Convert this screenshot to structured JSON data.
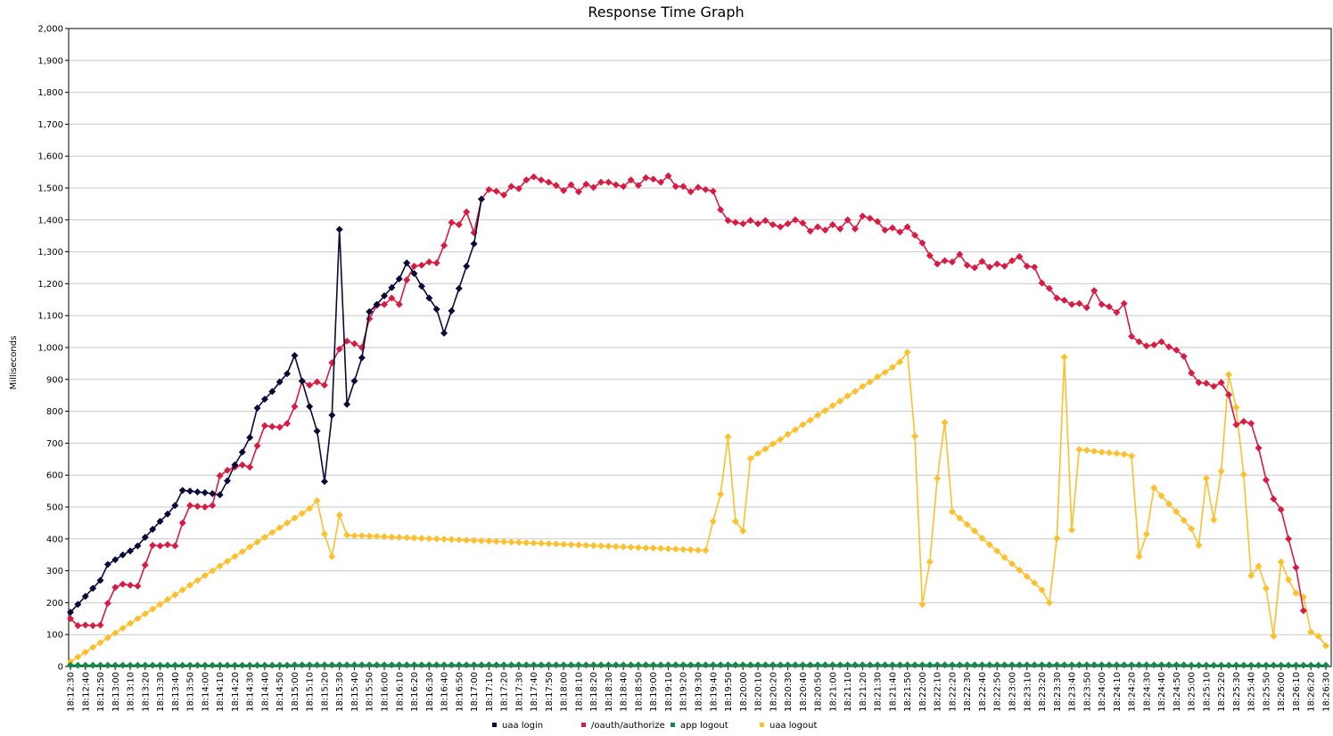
{
  "chart_data": {
    "type": "line",
    "title": "Response Time Graph",
    "ylabel": "Milliseconds",
    "xlabel": "",
    "ylim": [
      0,
      2000
    ],
    "yticks": [
      0,
      100,
      200,
      300,
      400,
      500,
      600,
      700,
      800,
      900,
      1000,
      1100,
      1200,
      1300,
      1400,
      1500,
      1600,
      1700,
      1800,
      1900,
      2000
    ],
    "ytick_labels": [
      "0",
      "100",
      "200",
      "300",
      "400",
      "500",
      "600",
      "700",
      "800",
      "900",
      "1,000",
      "1,100",
      "1,200",
      "1,300",
      "1,400",
      "1,500",
      "1,600",
      "1,700",
      "1,800",
      "1,900",
      "2,000"
    ],
    "grid": "horizontal",
    "legend_position": "bottom",
    "x_start": "18:12:30",
    "x_step_seconds": 5,
    "x_count": 169,
    "x_label_every": 2,
    "series": [
      {
        "name": "uaa login",
        "color": "#0a0a3a",
        "values": [
          170,
          195,
          220,
          245,
          270,
          320,
          335,
          350,
          362,
          378,
          405,
          430,
          455,
          478,
          505,
          552,
          550,
          547,
          545,
          542,
          538,
          582,
          632,
          672,
          718,
          810,
          838,
          862,
          892,
          918,
          975,
          895,
          815,
          738,
          580,
          788,
          1370,
          822,
          895,
          968,
          1112,
          1135,
          1162,
          1188,
          1215,
          1265,
          1232,
          1192,
          1155,
          1120,
          1045,
          1115,
          1185,
          1255,
          1325,
          1465
        ]
      },
      {
        "name": "/oauth/authorize",
        "color": "#d81b43",
        "values": [
          150,
          128,
          130,
          128,
          130,
          198,
          248,
          258,
          255,
          252,
          318,
          380,
          378,
          382,
          378,
          450,
          505,
          502,
          500,
          505,
          598,
          615,
          625,
          632,
          625,
          692,
          755,
          752,
          750,
          762,
          815,
          895,
          882,
          892,
          882,
          952,
          995,
          1020,
          1012,
          1000,
          1090,
          1132,
          1135,
          1155,
          1135,
          1212,
          1255,
          1258,
          1268,
          1265,
          1320,
          1392,
          1385,
          1425,
          1360,
          1465,
          1495,
          1490,
          1478,
          1505,
          1498,
          1525,
          1535,
          1525,
          1518,
          1508,
          1492,
          1510,
          1488,
          1512,
          1502,
          1518,
          1518,
          1510,
          1505,
          1525,
          1508,
          1532,
          1528,
          1518,
          1538,
          1505,
          1505,
          1488,
          1502,
          1495,
          1490,
          1432,
          1398,
          1392,
          1388,
          1398,
          1388,
          1398,
          1385,
          1378,
          1388,
          1400,
          1390,
          1365,
          1378,
          1368,
          1385,
          1372,
          1400,
          1372,
          1412,
          1405,
          1395,
          1368,
          1375,
          1362,
          1378,
          1352,
          1328,
          1288,
          1262,
          1272,
          1268,
          1292,
          1258,
          1250,
          1270,
          1252,
          1262,
          1255,
          1272,
          1285,
          1255,
          1252,
          1202,
          1185,
          1155,
          1148,
          1135,
          1138,
          1125,
          1178,
          1135,
          1128,
          1110,
          1138,
          1035,
          1018,
          1005,
          1008,
          1018,
          1002,
          992,
          972,
          920,
          890,
          888,
          878,
          890,
          852,
          758,
          768,
          762,
          685,
          585,
          525,
          492,
          400,
          310,
          175
        ]
      },
      {
        "name": "app logout",
        "color": "#138a4a",
        "values": [
          4,
          4,
          4,
          4,
          4,
          4,
          4,
          4,
          4,
          4,
          4,
          4,
          4,
          4,
          4,
          4,
          4,
          4,
          4,
          4,
          4,
          4,
          4,
          4,
          4,
          4,
          4,
          4,
          4,
          4,
          5,
          5,
          5,
          5,
          5,
          5,
          5,
          5,
          5,
          5,
          5,
          5,
          5,
          5,
          5,
          5,
          5,
          5,
          5,
          5,
          5,
          5,
          5,
          5,
          5,
          5,
          5,
          5,
          5,
          5,
          5,
          5,
          5,
          5,
          5,
          5,
          5,
          5,
          5,
          5,
          5,
          5,
          5,
          5,
          5,
          5,
          5,
          5,
          5,
          5,
          5,
          5,
          5,
          5,
          5,
          5,
          5,
          5,
          5,
          5,
          5,
          5,
          5,
          5,
          5,
          5,
          5,
          5,
          5,
          5,
          5,
          5,
          5,
          5,
          5,
          5,
          5,
          5,
          5,
          5,
          5,
          5,
          5,
          5,
          5,
          5,
          5,
          5,
          5,
          5,
          5,
          5,
          5,
          5,
          5,
          5,
          5,
          5,
          5,
          5,
          5,
          5,
          5,
          5,
          5,
          5,
          5,
          5,
          5,
          5,
          5,
          5,
          5,
          5,
          5,
          5,
          5,
          5,
          5,
          5,
          4,
          4,
          4,
          4,
          4,
          4,
          4,
          4,
          4,
          4,
          4,
          4,
          4,
          4,
          4,
          4,
          4,
          4,
          4
        ]
      },
      {
        "name": "uaa logout",
        "color": "#fcc02c",
        "values": [
          15,
          30,
          45,
          60,
          75,
          90,
          105,
          120,
          135,
          150,
          165,
          180,
          195,
          210,
          225,
          240,
          255,
          270,
          285,
          300,
          315,
          330,
          345,
          360,
          375,
          390,
          405,
          420,
          435,
          450,
          465,
          480,
          495,
          520,
          415,
          345,
          475,
          412,
          410,
          410,
          409,
          408,
          407,
          406,
          405,
          404,
          403,
          402,
          401,
          400,
          399,
          398,
          397,
          396,
          395,
          394,
          393,
          392,
          391,
          390,
          389,
          388,
          387,
          386,
          385,
          384,
          383,
          382,
          381,
          380,
          379,
          378,
          377,
          376,
          375,
          374,
          373,
          372,
          371,
          370,
          369,
          368,
          367,
          366,
          365,
          364,
          455,
          540,
          720,
          455,
          425,
          652,
          668,
          682,
          698,
          712,
          728,
          742,
          758,
          772,
          788,
          802,
          818,
          832,
          848,
          862,
          878,
          892,
          908,
          922,
          938,
          955,
          985,
          722,
          195,
          328,
          590,
          765,
          485,
          465,
          445,
          425,
          402,
          382,
          362,
          342,
          322,
          302,
          282,
          262,
          240,
          200,
          402,
          970,
          428,
          680,
          678,
          675,
          672,
          670,
          668,
          665,
          660,
          345,
          415,
          560,
          535,
          510,
          485,
          458,
          432,
          380,
          590,
          460,
          612,
          915,
          812,
          602,
          285,
          315,
          245,
          95,
          328,
          272,
          230,
          218,
          108,
          95,
          65
        ]
      }
    ]
  }
}
